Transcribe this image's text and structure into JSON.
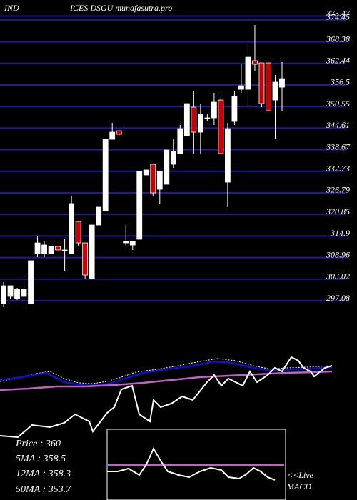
{
  "chart_data": {
    "type": "candlestick",
    "title": "IND",
    "subtitle": "ICES DSGU munafasutra.pro",
    "open": [
      296.29,
      298.26,
      297.67,
      298.26,
      296.29,
      310.06,
      310.06,
      310.06,
      312.03,
      311.05,
      310.06,
      318.91,
      313.01,
      303.18,
      317.93,
      321.86,
      341.53,
      343.89,
      313.01,
      312.42,
      314.0,
      331.7,
      334.65,
      327.77,
      329.14,
      334.65,
      337.6,
      342.52,
      350.39,
      343.5,
      347.44,
      347.44,
      352.35,
      329.73,
      346.45,
      355.3,
      355.3,
      363.17,
      362.58,
      362.58,
      352.35,
      355.89
    ],
    "high": [
      302.19,
      301.21,
      300.62,
      304.16,
      308.1,
      314.98,
      313.41,
      312.42,
      312.03,
      314.0,
      325.8,
      318.91,
      313.01,
      317.93,
      322.85,
      341.53,
      346.06,
      343.89,
      317.93,
      313.41,
      332.68,
      333.08,
      334.65,
      332.68,
      338.58,
      341.53,
      345.47,
      351.37,
      354.71,
      351.37,
      348.42,
      354.32,
      353.34,
      346.06,
      354.71,
      362.19,
      368.09,
      373.01,
      362.58,
      362.58,
      359.24,
      362.78
    ],
    "low": [
      295.31,
      297.67,
      297.28,
      297.28,
      296.29,
      309.08,
      309.08,
      310.06,
      311.05,
      305.14,
      310.06,
      312.03,
      303.18,
      303.18,
      317.93,
      321.86,
      341.53,
      342.52,
      312.03,
      311.05,
      314.0,
      331.7,
      325.8,
      323.83,
      329.14,
      333.67,
      337.6,
      342.52,
      337.6,
      337.6,
      346.45,
      345.47,
      337.6,
      322.85,
      345.47,
      354.32,
      350.39,
      360.22,
      350.39,
      349.4,
      341.53,
      349.4
    ],
    "close": [
      301.21,
      301.21,
      300.23,
      300.23,
      308.1,
      313.01,
      312.42,
      312.03,
      311.05,
      311.05,
      323.83,
      313.01,
      304.16,
      317.93,
      322.85,
      341.53,
      343.5,
      342.91,
      313.41,
      313.41,
      332.68,
      333.08,
      326.78,
      332.68,
      338.58,
      338.19,
      344.48,
      351.37,
      343.5,
      348.42,
      347.44,
      351.76,
      337.6,
      344.48,
      353.34,
      356.29,
      364.15,
      362.19,
      351.37,
      349.4,
      357.27,
      358.25
    ],
    "up_color": "#ffffff",
    "down_color": "#cc0000",
    "grid_color": "#1c1c9c",
    "ylim": [
      295.31,
      379.9
    ],
    "yticks": [
      375.47,
      374.45,
      368.38,
      362.44,
      356.5,
      350.55,
      344.61,
      338.67,
      332.73,
      326.79,
      320.85,
      314.9,
      308.96,
      303.02,
      297.08
    ],
    "grid": true,
    "info_lines": [
      "Price  : 360",
      "5MA : 358.5",
      "12MA : 358.3",
      "50MA : 353.7"
    ],
    "live_label": "<<Live",
    "macd_label": "MACD"
  }
}
